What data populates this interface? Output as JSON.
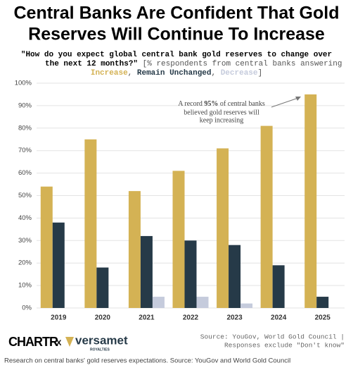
{
  "chart_data": {
    "type": "bar",
    "title_lines": [
      "Central Banks Are Confident That Gold",
      "Reserves Will Continue To Increase"
    ],
    "question_lines": [
      "\"How do you expect global central bank gold reserves to change over",
      "the next 12 months?\""
    ],
    "subtitle_note": "[% respondents from central banks answering",
    "legend_separator": ", ",
    "legend_end": "]",
    "categories": [
      "2019",
      "2020",
      "2021",
      "2022",
      "2023",
      "2024",
      "2025"
    ],
    "series": [
      {
        "name": "Increase",
        "color": "#d4b254",
        "values": [
          54,
          75,
          52,
          61,
          71,
          81,
          95
        ]
      },
      {
        "name": "Remain Unchanged",
        "color": "#263a48",
        "values": [
          38,
          18,
          32,
          30,
          28,
          19,
          5
        ]
      },
      {
        "name": "Decrease",
        "color": "#c5cbdc",
        "values": [
          0,
          0,
          5,
          5,
          2,
          0,
          0
        ]
      }
    ],
    "ylim": [
      0,
      100
    ],
    "yticks": [
      {
        "value": 0,
        "label": "0%"
      },
      {
        "value": 10,
        "label": "10%"
      },
      {
        "value": 20,
        "label": "20%"
      },
      {
        "value": 30,
        "label": "30%"
      },
      {
        "value": 40,
        "label": "40%"
      },
      {
        "value": 50,
        "label": "50%"
      },
      {
        "value": 60,
        "label": "60%"
      },
      {
        "value": 70,
        "label": "70%"
      },
      {
        "value": 80,
        "label": "80%"
      },
      {
        "value": 90,
        "label": "90%"
      },
      {
        "value": 100,
        "label": "100%"
      }
    ],
    "grid": true,
    "annotation_parts": [
      "A record",
      "95%",
      "of central banks",
      "believed gold reserves will",
      "keep increasing"
    ],
    "source_lines": [
      "Source: YouGov, World Gold Council |",
      "Responses exclude \"Don't know\""
    ],
    "logos": [
      "CHARTR",
      "X",
      "versamet",
      "ROYALTIES"
    ],
    "caption": "Research on central banks' gold reserves expectations. Source: YouGov and World Gold Council"
  }
}
